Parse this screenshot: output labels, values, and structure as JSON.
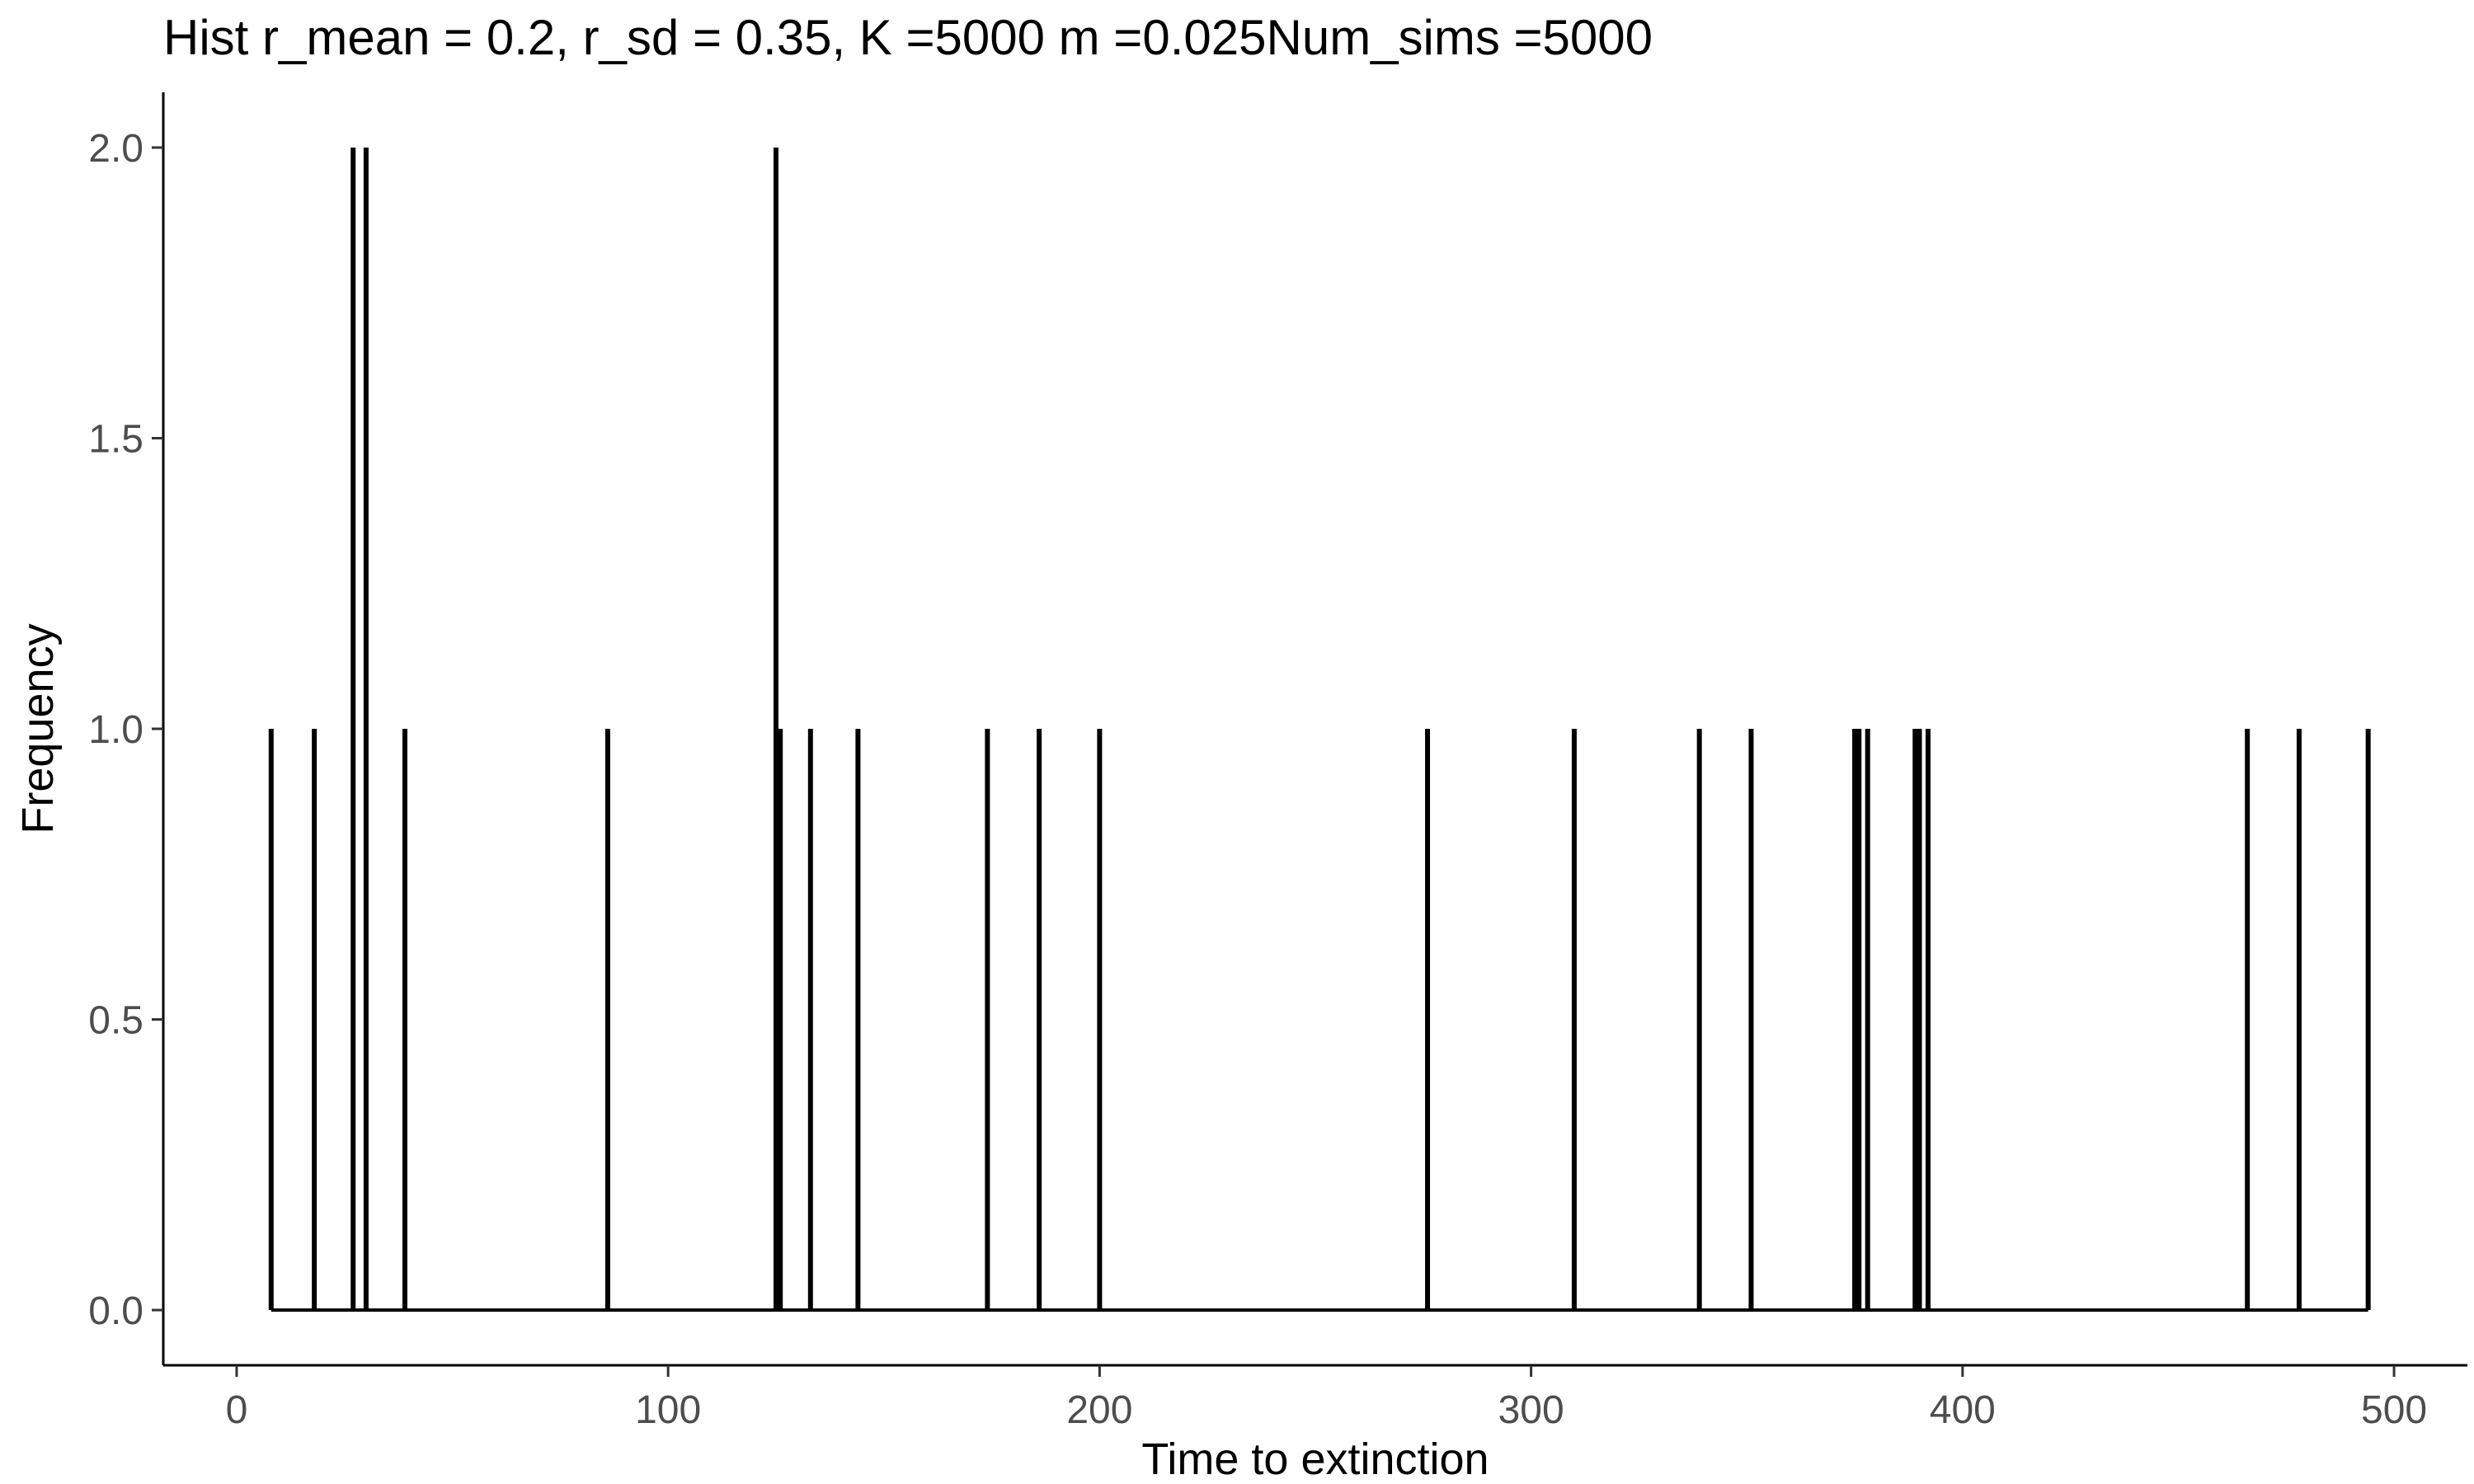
{
  "chart_data": {
    "type": "bar",
    "title": "Hist r_mean = 0.2, r_sd = 0.35, K =5000 m =0.025Num_sims =5000",
    "xlabel": "Time to extinction",
    "ylabel": "Frequency",
    "xlim": [
      -17,
      517
    ],
    "ylim": [
      -0.095,
      2.095
    ],
    "x_ticks": [
      0,
      100,
      200,
      300,
      400,
      500
    ],
    "x_tick_labels": [
      "0",
      "100",
      "200",
      "300",
      "400",
      "500"
    ],
    "y_ticks": [
      0,
      0.5,
      1,
      1.5,
      2
    ],
    "y_tick_labels": [
      "0.0",
      "0.5",
      "1.0",
      "1.5",
      "2.0"
    ],
    "baseline_range": [
      8,
      494
    ],
    "grid": false,
    "legend": "none",
    "bar_color": "#000000",
    "x": [
      8,
      18,
      27,
      30,
      39,
      86,
      125,
      126,
      133,
      144,
      174,
      186,
      200,
      276,
      310,
      339,
      351,
      375,
      376,
      378,
      389,
      390,
      392,
      466,
      478,
      494
    ],
    "values": [
      1,
      1,
      2,
      2,
      1,
      1,
      2,
      1,
      1,
      1,
      1,
      1,
      1,
      1,
      1,
      1,
      1,
      1,
      1,
      1,
      1,
      1,
      1,
      1,
      1,
      1
    ]
  }
}
